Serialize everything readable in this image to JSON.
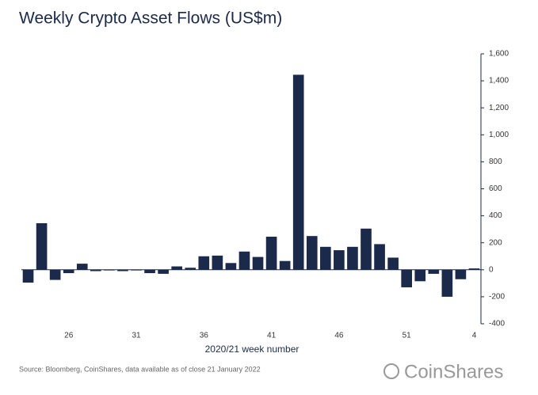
{
  "chart_data": {
    "type": "bar",
    "title": "Weekly Crypto Asset Flows (US$m)",
    "x_label": "2020/21 week number",
    "source": "Source: Bloomberg, CoinShares, data available as of close 21 January 2022",
    "brand": "CoinShares",
    "categories": [
      null,
      null,
      null,
      "26",
      null,
      null,
      null,
      null,
      "31",
      null,
      null,
      null,
      null,
      "36",
      null,
      null,
      null,
      null,
      "41",
      null,
      null,
      null,
      null,
      "46",
      null,
      null,
      null,
      null,
      "51",
      null,
      null,
      null,
      null,
      "4"
    ],
    "values": [
      -95,
      345,
      -75,
      -25,
      45,
      -10,
      -5,
      -10,
      -5,
      -25,
      -30,
      25,
      15,
      100,
      105,
      50,
      135,
      95,
      245,
      65,
      1445,
      250,
      170,
      145,
      170,
      305,
      190,
      90,
      -130,
      -85,
      -30,
      -200,
      -70,
      10
    ],
    "color": "#1b2a4a",
    "ylim": [
      -400,
      1600
    ],
    "yticks": [
      -400,
      -200,
      0,
      200,
      400,
      600,
      800,
      {
        "value": 1000,
        "label": "1,000"
      },
      {
        "value": 1200,
        "label": "1,200"
      },
      {
        "value": 1400,
        "label": "1,400"
      },
      {
        "value": 1600,
        "label": "1,600"
      }
    ]
  }
}
